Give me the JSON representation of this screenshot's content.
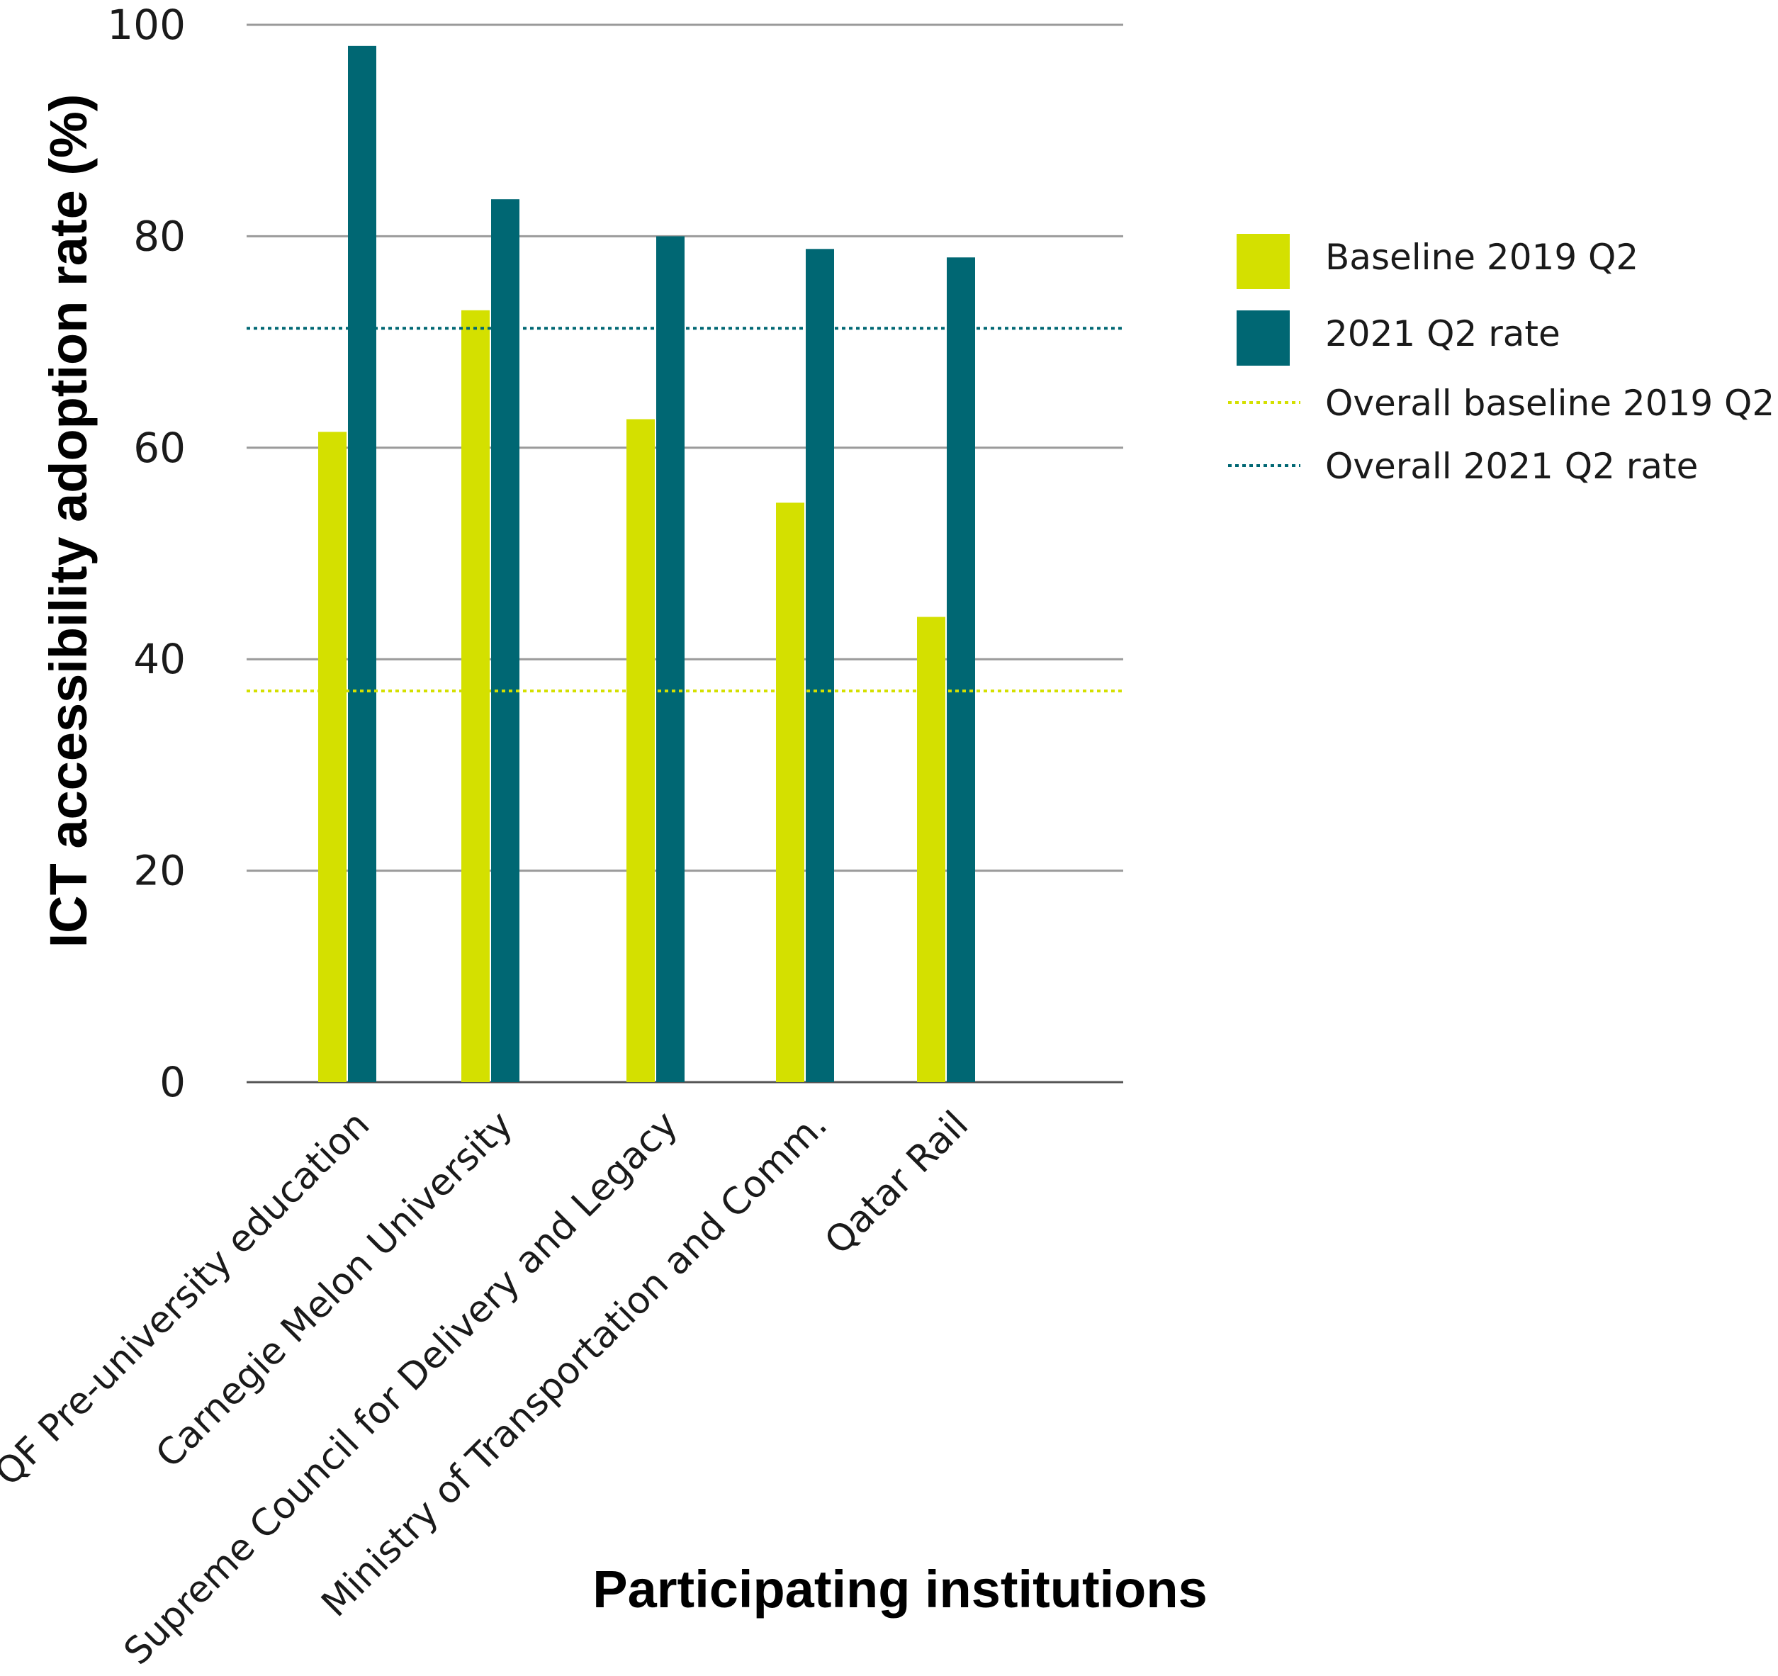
{
  "colors": {
    "baseline": "#d4e000",
    "rate2021": "#006773",
    "grid": "#9a9a9a",
    "axis": "#555555"
  },
  "chart_data": {
    "type": "bar",
    "categories": [
      "QF Pre-university education",
      "Carnegie Melon University",
      "Supreme Council for Delivery and Legacy",
      "Ministry of Transportation and Comm.",
      "Qatar Rail"
    ],
    "series": [
      {
        "name": "Baseline 2019 Q2",
        "values": [
          61.5,
          73,
          62.7,
          54.8,
          44
        ]
      },
      {
        "name": "2021 Q2 rate",
        "values": [
          98,
          83.5,
          80,
          78.8,
          78
        ]
      }
    ],
    "reference_lines": [
      {
        "name": "Overall baseline 2019 Q2",
        "value": 37
      },
      {
        "name": "Overall 2021 Q2 rate",
        "value": 71.3
      }
    ],
    "title": "",
    "xlabel": "Participating institutions",
    "ylabel": "ICT accessibility adoption rate (%)",
    "ylim": [
      0,
      100
    ],
    "yticks": [
      "0",
      "20",
      "40",
      "60",
      "80",
      "100"
    ],
    "grid": true,
    "legend_position": "right"
  }
}
